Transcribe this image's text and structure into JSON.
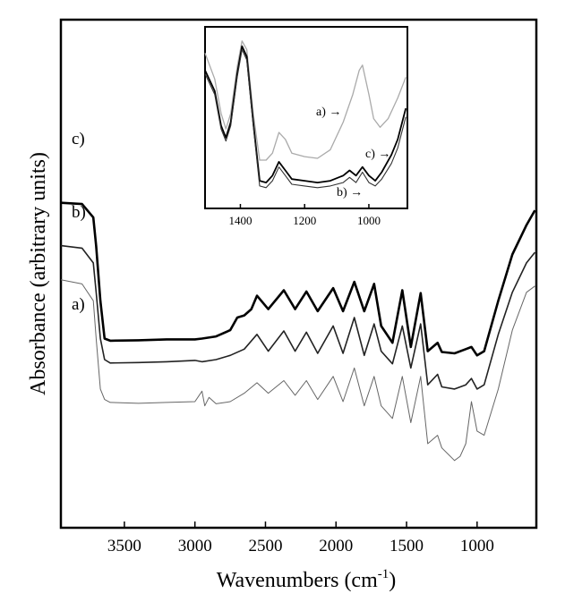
{
  "chart_data": [
    {
      "type": "line",
      "title": "",
      "xlabel": "Wavenumbers (cm",
      "xlabel_sup": "-1",
      "xlabel_close": ")",
      "ylabel": "Absorbance (arbitrary units)",
      "xlim": [
        3950,
        580
      ],
      "x_reversed": true,
      "ylim": [
        0,
        1
      ],
      "x_ticks": [
        3500,
        3000,
        2500,
        2000,
        1500,
        1000
      ],
      "x_tick_labels": [
        "3500",
        "3000",
        "2500",
        "2000",
        "1500",
        "1000"
      ],
      "y_ticks": [],
      "grid": false,
      "series": [
        {
          "name": "c)",
          "label": "c)",
          "color": "#000000",
          "points": [
            [
              3950,
              0.773
            ],
            [
              3800,
              0.77
            ],
            [
              3720,
              0.738
            ],
            [
              3700,
              0.67
            ],
            [
              3670,
              0.54
            ],
            [
              3640,
              0.45
            ],
            [
              3600,
              0.445
            ],
            [
              3400,
              0.446
            ],
            [
              3200,
              0.448
            ],
            [
              3000,
              0.448
            ],
            [
              2950,
              0.45
            ],
            [
              2850,
              0.455
            ],
            [
              2750,
              0.47
            ],
            [
              2700,
              0.5
            ],
            [
              2650,
              0.505
            ],
            [
              2600,
              0.52
            ],
            [
              2560,
              0.552
            ],
            [
              2480,
              0.52
            ],
            [
              2370,
              0.565
            ],
            [
              2290,
              0.52
            ],
            [
              2210,
              0.562
            ],
            [
              2130,
              0.515
            ],
            [
              2020,
              0.57
            ],
            [
              1950,
              0.515
            ],
            [
              1870,
              0.585
            ],
            [
              1800,
              0.515
            ],
            [
              1730,
              0.58
            ],
            [
              1680,
              0.48
            ],
            [
              1600,
              0.44
            ],
            [
              1530,
              0.565
            ],
            [
              1470,
              0.43
            ],
            [
              1400,
              0.558
            ],
            [
              1350,
              0.42
            ],
            [
              1280,
              0.44
            ],
            [
              1250,
              0.418
            ],
            [
              1160,
              0.415
            ],
            [
              1080,
              0.425
            ],
            [
              1040,
              0.43
            ],
            [
              1000,
              0.41
            ],
            [
              950,
              0.42
            ],
            [
              850,
              0.54
            ],
            [
              750,
              0.65
            ],
            [
              650,
              0.72
            ],
            [
              590,
              0.755
            ]
          ]
        },
        {
          "name": "b)",
          "label": "b)",
          "color": "#222222",
          "points": [
            [
              3950,
              0.671
            ],
            [
              3800,
              0.665
            ],
            [
              3720,
              0.63
            ],
            [
              3700,
              0.56
            ],
            [
              3670,
              0.45
            ],
            [
              3640,
              0.4
            ],
            [
              3600,
              0.392
            ],
            [
              3400,
              0.393
            ],
            [
              3200,
              0.395
            ],
            [
              3000,
              0.398
            ],
            [
              2950,
              0.395
            ],
            [
              2850,
              0.4
            ],
            [
              2750,
              0.41
            ],
            [
              2650,
              0.425
            ],
            [
              2560,
              0.46
            ],
            [
              2480,
              0.42
            ],
            [
              2370,
              0.468
            ],
            [
              2290,
              0.42
            ],
            [
              2210,
              0.465
            ],
            [
              2130,
              0.415
            ],
            [
              2020,
              0.48
            ],
            [
              1950,
              0.415
            ],
            [
              1870,
              0.5
            ],
            [
              1800,
              0.41
            ],
            [
              1730,
              0.485
            ],
            [
              1680,
              0.42
            ],
            [
              1600,
              0.39
            ],
            [
              1530,
              0.48
            ],
            [
              1470,
              0.38
            ],
            [
              1400,
              0.485
            ],
            [
              1350,
              0.34
            ],
            [
              1280,
              0.365
            ],
            [
              1250,
              0.335
            ],
            [
              1160,
              0.33
            ],
            [
              1080,
              0.34
            ],
            [
              1040,
              0.355
            ],
            [
              1000,
              0.33
            ],
            [
              950,
              0.34
            ],
            [
              850,
              0.46
            ],
            [
              750,
              0.56
            ],
            [
              650,
              0.63
            ],
            [
              590,
              0.655
            ]
          ]
        },
        {
          "name": "a)",
          "label": "a)",
          "color": "#666666",
          "points": [
            [
              3950,
              0.59
            ],
            [
              3800,
              0.58
            ],
            [
              3720,
              0.54
            ],
            [
              3700,
              0.45
            ],
            [
              3670,
              0.33
            ],
            [
              3640,
              0.305
            ],
            [
              3600,
              0.298
            ],
            [
              3400,
              0.296
            ],
            [
              3200,
              0.298
            ],
            [
              3000,
              0.3
            ],
            [
              2950,
              0.325
            ],
            [
              2930,
              0.29
            ],
            [
              2900,
              0.31
            ],
            [
              2850,
              0.295
            ],
            [
              2750,
              0.3
            ],
            [
              2650,
              0.32
            ],
            [
              2560,
              0.345
            ],
            [
              2480,
              0.32
            ],
            [
              2370,
              0.35
            ],
            [
              2290,
              0.315
            ],
            [
              2210,
              0.35
            ],
            [
              2130,
              0.305
            ],
            [
              2020,
              0.36
            ],
            [
              1950,
              0.3
            ],
            [
              1870,
              0.38
            ],
            [
              1800,
              0.29
            ],
            [
              1730,
              0.36
            ],
            [
              1680,
              0.29
            ],
            [
              1600,
              0.26
            ],
            [
              1530,
              0.36
            ],
            [
              1470,
              0.25
            ],
            [
              1400,
              0.36
            ],
            [
              1350,
              0.2
            ],
            [
              1280,
              0.22
            ],
            [
              1250,
              0.19
            ],
            [
              1160,
              0.16
            ],
            [
              1120,
              0.17
            ],
            [
              1080,
              0.2
            ],
            [
              1040,
              0.3
            ],
            [
              1000,
              0.23
            ],
            [
              950,
              0.22
            ],
            [
              850,
              0.33
            ],
            [
              750,
              0.47
            ],
            [
              650,
              0.56
            ],
            [
              590,
              0.575
            ]
          ]
        }
      ]
    },
    {
      "type": "line",
      "title": "",
      "xlabel": "",
      "ylabel": "",
      "xlim": [
        1510,
        880
      ],
      "x_reversed": true,
      "ylim": [
        0,
        1
      ],
      "x_ticks": [
        1400,
        1200,
        1000
      ],
      "x_tick_labels": [
        "1400",
        "1200",
        "1000"
      ],
      "grid": false,
      "series": [
        {
          "name": "a)",
          "label": "a) →",
          "color": "#aaaaaa",
          "points": [
            [
              1510,
              0.9
            ],
            [
              1480,
              0.75
            ],
            [
              1460,
              0.55
            ],
            [
              1445,
              0.46
            ],
            [
              1430,
              0.55
            ],
            [
              1410,
              0.82
            ],
            [
              1395,
              0.97
            ],
            [
              1380,
              0.92
            ],
            [
              1360,
              0.55
            ],
            [
              1340,
              0.28
            ],
            [
              1320,
              0.28
            ],
            [
              1300,
              0.32
            ],
            [
              1280,
              0.44
            ],
            [
              1260,
              0.4
            ],
            [
              1240,
              0.32
            ],
            [
              1200,
              0.3
            ],
            [
              1160,
              0.29
            ],
            [
              1120,
              0.34
            ],
            [
              1080,
              0.5
            ],
            [
              1050,
              0.66
            ],
            [
              1030,
              0.8
            ],
            [
              1020,
              0.83
            ],
            [
              1000,
              0.66
            ],
            [
              985,
              0.52
            ],
            [
              965,
              0.47
            ],
            [
              940,
              0.52
            ],
            [
              910,
              0.64
            ],
            [
              885,
              0.76
            ]
          ]
        },
        {
          "name": "c)",
          "label": "c) →",
          "color": "#000000",
          "points": [
            [
              1510,
              0.8
            ],
            [
              1480,
              0.68
            ],
            [
              1460,
              0.48
            ],
            [
              1445,
              0.41
            ],
            [
              1430,
              0.5
            ],
            [
              1410,
              0.78
            ],
            [
              1395,
              0.94
            ],
            [
              1380,
              0.88
            ],
            [
              1360,
              0.5
            ],
            [
              1340,
              0.16
            ],
            [
              1320,
              0.15
            ],
            [
              1300,
              0.19
            ],
            [
              1280,
              0.27
            ],
            [
              1260,
              0.22
            ],
            [
              1240,
              0.17
            ],
            [
              1200,
              0.16
            ],
            [
              1160,
              0.15
            ],
            [
              1120,
              0.16
            ],
            [
              1080,
              0.19
            ],
            [
              1060,
              0.22
            ],
            [
              1040,
              0.19
            ],
            [
              1020,
              0.24
            ],
            [
              1000,
              0.19
            ],
            [
              980,
              0.16
            ],
            [
              960,
              0.21
            ],
            [
              930,
              0.31
            ],
            [
              910,
              0.4
            ],
            [
              885,
              0.58
            ]
          ]
        },
        {
          "name": "b)",
          "label": "b) →",
          "color": "#333333",
          "points": [
            [
              1510,
              0.78
            ],
            [
              1480,
              0.66
            ],
            [
              1460,
              0.46
            ],
            [
              1445,
              0.39
            ],
            [
              1430,
              0.48
            ],
            [
              1410,
              0.76
            ],
            [
              1395,
              0.92
            ],
            [
              1380,
              0.86
            ],
            [
              1360,
              0.48
            ],
            [
              1340,
              0.13
            ],
            [
              1320,
              0.12
            ],
            [
              1300,
              0.16
            ],
            [
              1280,
              0.24
            ],
            [
              1260,
              0.19
            ],
            [
              1240,
              0.14
            ],
            [
              1200,
              0.13
            ],
            [
              1160,
              0.12
            ],
            [
              1120,
              0.13
            ],
            [
              1080,
              0.15
            ],
            [
              1060,
              0.18
            ],
            [
              1040,
              0.15
            ],
            [
              1020,
              0.21
            ],
            [
              1000,
              0.15
            ],
            [
              980,
              0.13
            ],
            [
              960,
              0.17
            ],
            [
              930,
              0.26
            ],
            [
              910,
              0.35
            ],
            [
              885,
              0.53
            ]
          ]
        }
      ]
    }
  ]
}
